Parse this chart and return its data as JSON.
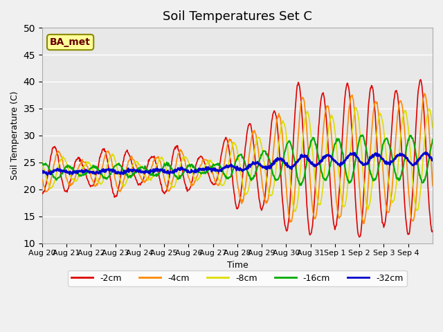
{
  "title": "Soil Temperatures Set C",
  "xlabel": "Time",
  "ylabel": "Soil Temperature (C)",
  "ylim": [
    10,
    50
  ],
  "yticks": [
    10,
    15,
    20,
    25,
    30,
    35,
    40,
    45,
    50
  ],
  "xlabels": [
    "Aug 20",
    "Aug 21",
    "Aug 22",
    "Aug 23",
    "Aug 24",
    "Aug 25",
    "Aug 26",
    "Aug 27",
    "Aug 28",
    "Aug 29",
    "Aug 30",
    "Aug 31",
    "Sep 1",
    "Sep 2",
    "Sep 3",
    "Sep 4"
  ],
  "n_days": 16,
  "legend_labels": [
    "-2cm",
    "-4cm",
    "-8cm",
    "-16cm",
    "-32cm"
  ],
  "legend_colors": [
    "#dd0000",
    "#ff8800",
    "#dddd00",
    "#00aa00",
    "#0000cc"
  ],
  "line_widths": [
    1.2,
    1.2,
    1.2,
    1.5,
    2.0
  ],
  "bg_color": "#e8e8e8",
  "annotation_text": "BA_met",
  "annotation_bg": "#ffff99",
  "annotation_border": "#888800"
}
